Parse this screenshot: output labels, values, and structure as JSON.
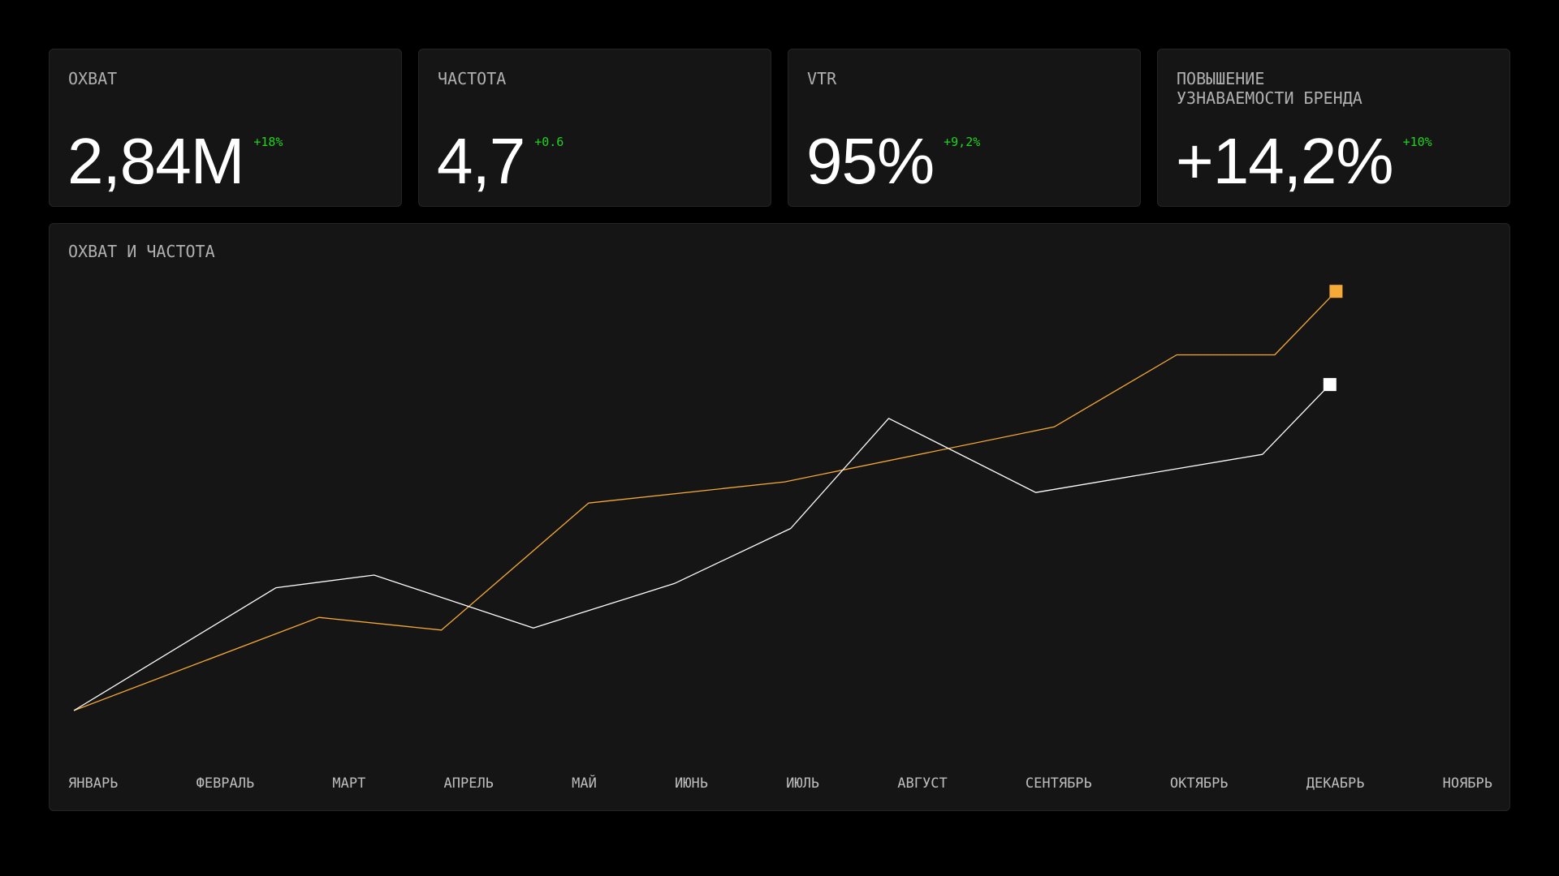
{
  "kpis": [
    {
      "label": "ОХВАТ",
      "value": "2,84M",
      "delta": "+18%"
    },
    {
      "label": "ЧАСТОТА",
      "value": "4,7",
      "delta": "+0.6"
    },
    {
      "label": "VTR",
      "value": "95%",
      "delta": "+9,2%"
    },
    {
      "label": "ПОВЫШЕНИЕ\nУЗНАВАЕМОСТИ БРЕНДА",
      "value": "+14,2%",
      "delta": "+10%"
    }
  ],
  "colors": {
    "background": "#000000",
    "card": "#151515",
    "delta_positive": "#1ed41e",
    "series_orange": "#f5a936",
    "series_white": "#ffffff"
  },
  "chart_data": {
    "type": "line",
    "title": "ОХВАТ И ЧАСТОТА",
    "categories": [
      "ЯНВАРЬ",
      "ФЕВРАЛЬ",
      "МАРТ",
      "АПРЕЛЬ",
      "МАЙ",
      "ИЮНЬ",
      "ИЮЛЬ",
      "АВГУСТ",
      "СЕНТЯБРЬ",
      "ОКТЯБРЬ",
      "ДЕКАБРЬ",
      "НОЯБРЬ"
    ],
    "grid": false,
    "legend": "none",
    "y_axis_visible": false,
    "ylim": [
      0,
      100
    ],
    "series": [
      {
        "color": "#f5a936",
        "end_marker": "square",
        "points": [
          {
            "x": 0.0,
            "y": 0
          },
          {
            "x": 2.0,
            "y": 22
          },
          {
            "x": 3.0,
            "y": 19
          },
          {
            "x": 4.2,
            "y": 49
          },
          {
            "x": 5.8,
            "y": 54
          },
          {
            "x": 8.0,
            "y": 67
          },
          {
            "x": 9.0,
            "y": 84
          },
          {
            "x": 9.8,
            "y": 84
          },
          {
            "x": 10.3,
            "y": 99
          }
        ]
      },
      {
        "color": "#ffffff",
        "end_marker": "square",
        "points": [
          {
            "x": 0.0,
            "y": 0
          },
          {
            "x": 1.65,
            "y": 29
          },
          {
            "x": 2.45,
            "y": 32
          },
          {
            "x": 3.75,
            "y": 19.5
          },
          {
            "x": 4.9,
            "y": 30
          },
          {
            "x": 5.85,
            "y": 43
          },
          {
            "x": 6.65,
            "y": 69
          },
          {
            "x": 7.85,
            "y": 51.5
          },
          {
            "x": 9.7,
            "y": 60.5
          },
          {
            "x": 10.25,
            "y": 77
          }
        ]
      }
    ]
  }
}
